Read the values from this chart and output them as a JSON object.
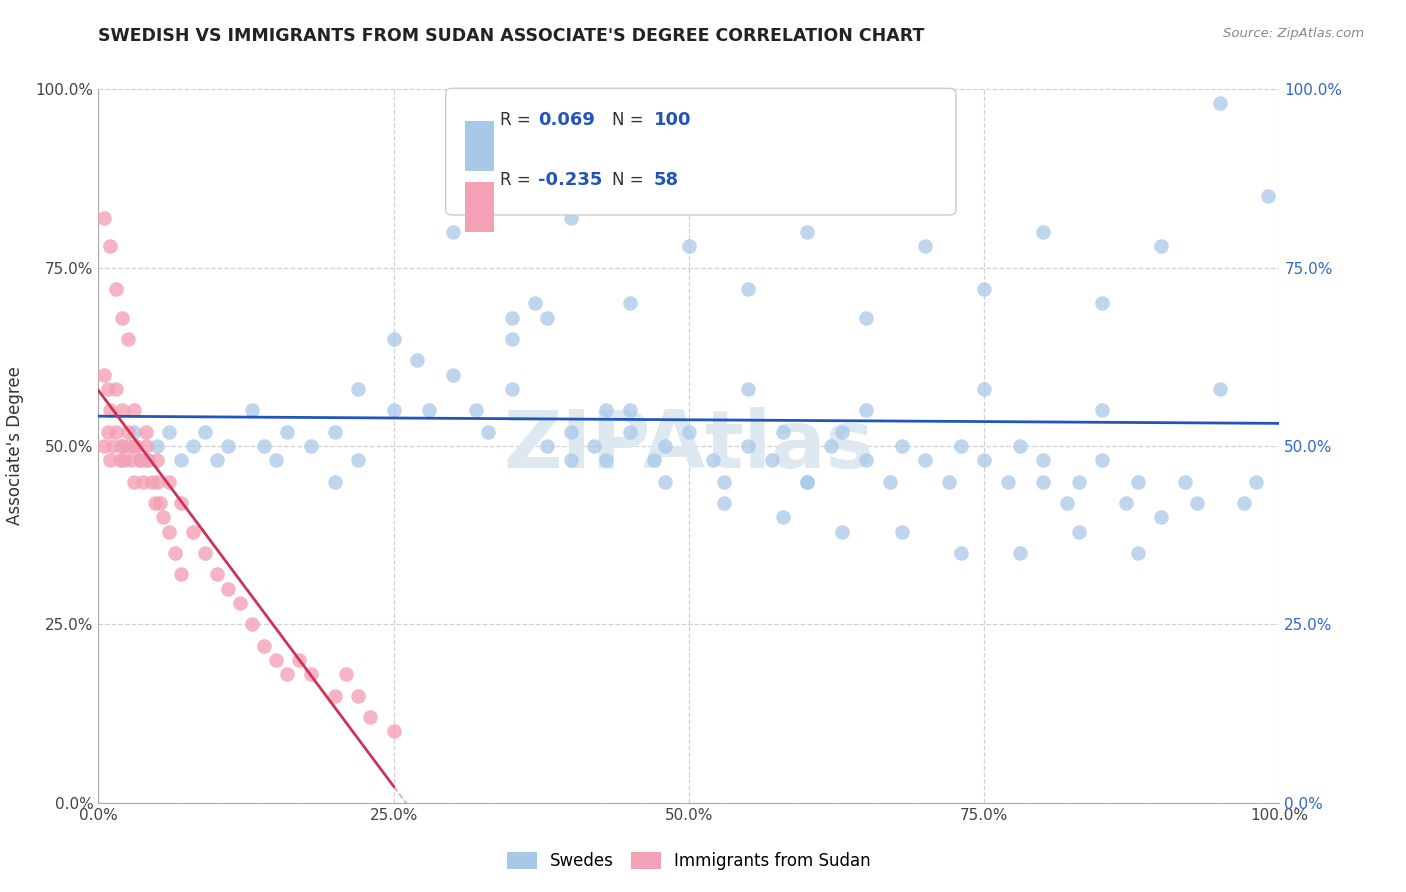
{
  "title": "SWEDISH VS IMMIGRANTS FROM SUDAN ASSOCIATE'S DEGREE CORRELATION CHART",
  "source": "Source: ZipAtlas.com",
  "ylabel": "Associate's Degree",
  "R1": 0.069,
  "N1": 100,
  "R2": -0.235,
  "N2": 58,
  "blue_color": "#a8c8e8",
  "pink_color": "#f4a0b5",
  "blue_line_color": "#2255bb",
  "pink_line_color": "#cc3355",
  "watermark": "ZIPAtlas",
  "legend1_label": "Swedes",
  "legend2_label": "Immigrants from Sudan",
  "right_ytick_color": "#3366cc",
  "title_color": "#222222",
  "source_color": "#888888",
  "blue_x": [
    0.02,
    0.03,
    0.04,
    0.05,
    0.06,
    0.07,
    0.08,
    0.09,
    0.1,
    0.11,
    0.13,
    0.14,
    0.15,
    0.16,
    0.18,
    0.2,
    0.22,
    0.25,
    0.27,
    0.3,
    0.32,
    0.35,
    0.37,
    0.38,
    0.4,
    0.42,
    0.43,
    0.45,
    0.47,
    0.48,
    0.5,
    0.52,
    0.53,
    0.55,
    0.57,
    0.58,
    0.6,
    0.62,
    0.63,
    0.65,
    0.67,
    0.68,
    0.7,
    0.72,
    0.73,
    0.75,
    0.77,
    0.78,
    0.8,
    0.82,
    0.83,
    0.85,
    0.87,
    0.88,
    0.9,
    0.92,
    0.93,
    0.95,
    0.97,
    0.98,
    0.22,
    0.28,
    0.33,
    0.38,
    0.43,
    0.48,
    0.53,
    0.58,
    0.63,
    0.68,
    0.73,
    0.78,
    0.83,
    0.88,
    0.35,
    0.45,
    0.55,
    0.65,
    0.75,
    0.85,
    0.3,
    0.4,
    0.5,
    0.6,
    0.7,
    0.8,
    0.9,
    0.25,
    0.35,
    0.45,
    0.55,
    0.65,
    0.75,
    0.85,
    0.95,
    0.2,
    0.4,
    0.6,
    0.8,
    0.99
  ],
  "blue_y": [
    0.5,
    0.52,
    0.48,
    0.5,
    0.52,
    0.48,
    0.5,
    0.52,
    0.48,
    0.5,
    0.55,
    0.5,
    0.48,
    0.52,
    0.5,
    0.52,
    0.48,
    0.65,
    0.62,
    0.6,
    0.55,
    0.65,
    0.7,
    0.68,
    0.52,
    0.5,
    0.55,
    0.52,
    0.48,
    0.5,
    0.52,
    0.48,
    0.45,
    0.5,
    0.48,
    0.52,
    0.45,
    0.5,
    0.52,
    0.48,
    0.45,
    0.5,
    0.48,
    0.45,
    0.5,
    0.48,
    0.45,
    0.5,
    0.45,
    0.42,
    0.45,
    0.48,
    0.42,
    0.45,
    0.4,
    0.45,
    0.42,
    0.98,
    0.42,
    0.45,
    0.58,
    0.55,
    0.52,
    0.5,
    0.48,
    0.45,
    0.42,
    0.4,
    0.38,
    0.38,
    0.35,
    0.35,
    0.38,
    0.35,
    0.68,
    0.7,
    0.72,
    0.68,
    0.72,
    0.7,
    0.8,
    0.82,
    0.78,
    0.8,
    0.78,
    0.8,
    0.78,
    0.55,
    0.58,
    0.55,
    0.58,
    0.55,
    0.58,
    0.55,
    0.58,
    0.45,
    0.48,
    0.45,
    0.48,
    0.85
  ],
  "pink_x": [
    0.005,
    0.008,
    0.01,
    0.012,
    0.015,
    0.018,
    0.02,
    0.022,
    0.025,
    0.028,
    0.03,
    0.032,
    0.035,
    0.038,
    0.04,
    0.042,
    0.045,
    0.048,
    0.05,
    0.052,
    0.005,
    0.008,
    0.01,
    0.015,
    0.02,
    0.025,
    0.03,
    0.035,
    0.005,
    0.01,
    0.015,
    0.02,
    0.025,
    0.055,
    0.06,
    0.065,
    0.07,
    0.08,
    0.09,
    0.1,
    0.11,
    0.12,
    0.13,
    0.14,
    0.15,
    0.16,
    0.17,
    0.18,
    0.2,
    0.21,
    0.22,
    0.23,
    0.25,
    0.03,
    0.04,
    0.05,
    0.06,
    0.07
  ],
  "pink_y": [
    0.5,
    0.52,
    0.48,
    0.5,
    0.52,
    0.48,
    0.5,
    0.48,
    0.5,
    0.48,
    0.45,
    0.5,
    0.48,
    0.45,
    0.5,
    0.48,
    0.45,
    0.42,
    0.45,
    0.42,
    0.6,
    0.58,
    0.55,
    0.58,
    0.55,
    0.52,
    0.5,
    0.48,
    0.82,
    0.78,
    0.72,
    0.68,
    0.65,
    0.4,
    0.38,
    0.35,
    0.32,
    0.38,
    0.35,
    0.32,
    0.3,
    0.28,
    0.25,
    0.22,
    0.2,
    0.18,
    0.2,
    0.18,
    0.15,
    0.18,
    0.15,
    0.12,
    0.1,
    0.55,
    0.52,
    0.48,
    0.45,
    0.42
  ],
  "blue_trendline": [
    0.0,
    1.0,
    0.455,
    0.5
  ],
  "pink_trendline_solid": [
    0.0,
    0.3,
    0.455,
    0.3
  ],
  "pink_trendline_dash": [
    0.3,
    1.0,
    0.3,
    -0.3
  ]
}
